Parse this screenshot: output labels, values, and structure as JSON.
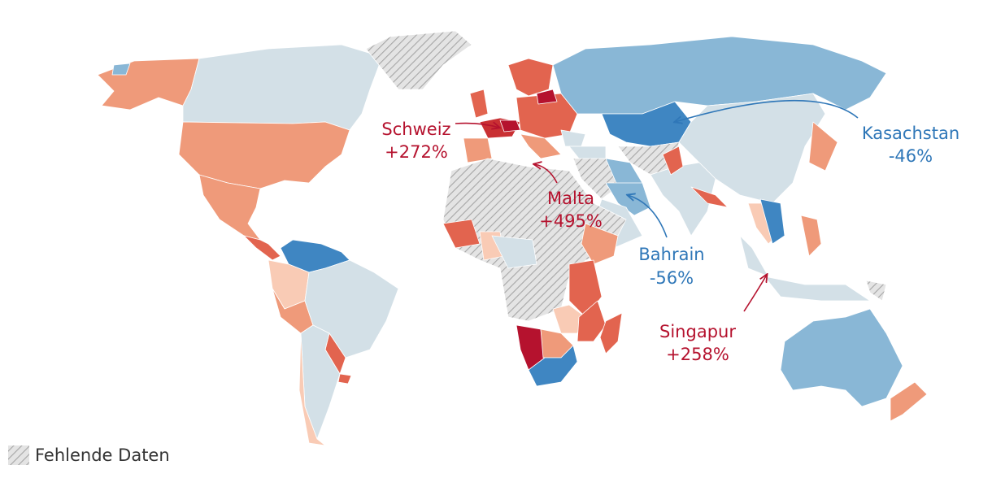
{
  "annotations": [
    {
      "name": "Schweiz",
      "change": "+272%"
    },
    {
      "name": "Malta",
      "change": "+495%"
    },
    {
      "name": "Kasachstan",
      "change": "-46%"
    },
    {
      "name": "Bahrain",
      "change": "-56%"
    },
    {
      "name": "Singapur",
      "change": "+258%"
    }
  ],
  "legend": {
    "missing_data": "Fehlende Daten"
  }
}
